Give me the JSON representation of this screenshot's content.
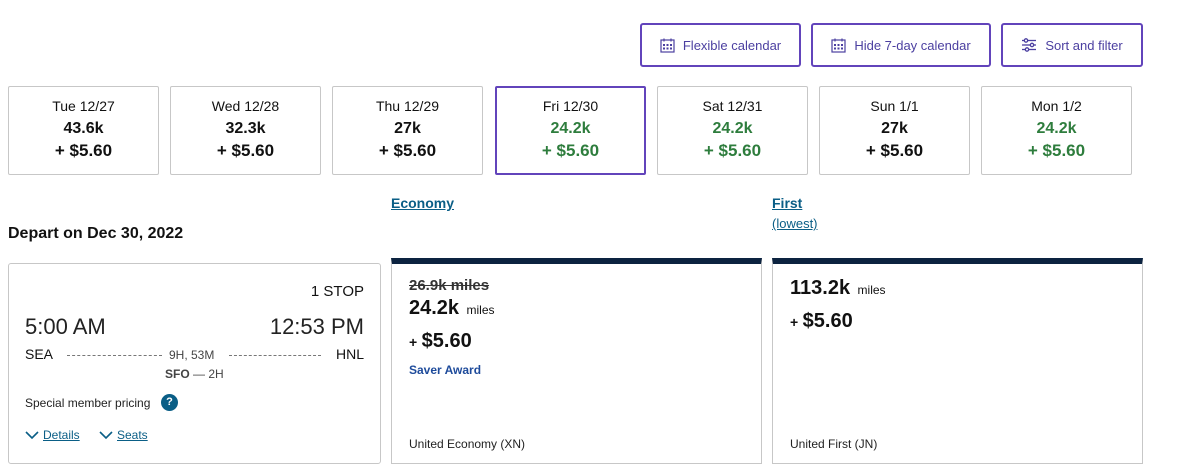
{
  "toolbar": {
    "flexible_calendar": "Flexible calendar",
    "hide_calendar": "Hide 7-day calendar",
    "sort_filter": "Sort and filter"
  },
  "calendar": [
    {
      "date": "Tue 12/27",
      "miles": "43.6k",
      "price": "+ $5.60",
      "low": false
    },
    {
      "date": "Wed 12/28",
      "miles": "32.3k",
      "price": "+ $5.60",
      "low": false
    },
    {
      "date": "Thu 12/29",
      "miles": "27k",
      "price": "+ $5.60",
      "low": false
    },
    {
      "date": "Fri 12/30",
      "miles": "24.2k",
      "price": "+ $5.60",
      "low": true,
      "selected": true
    },
    {
      "date": "Sat 12/31",
      "miles": "24.2k",
      "price": "+ $5.60",
      "low": true
    },
    {
      "date": "Sun 1/1",
      "miles": "27k",
      "price": "+ $5.60",
      "low": false
    },
    {
      "date": "Mon 1/2",
      "miles": "24.2k",
      "price": "+ $5.60",
      "low": true
    }
  ],
  "columns": {
    "economy": "Economy",
    "first": "First",
    "first_sub": "(lowest)"
  },
  "depart_title": "Depart on Dec 30, 2022",
  "flight": {
    "stops": "1 STOP",
    "depart_time": "5:00 AM",
    "arrive_time": "12:53 PM",
    "origin": "SEA",
    "destination": "HNL",
    "duration": "9H, 53M",
    "layover_airport": "SFO",
    "layover_time": "— 2H",
    "special_pricing": "Special member pricing",
    "help": "?",
    "details_link": "Details",
    "seats_link": "Seats"
  },
  "economy_fare": {
    "old_miles": "26.9k miles",
    "miles": "24.2k",
    "miles_unit": "miles",
    "plus": "+",
    "price": "$5.60",
    "award": "Saver Award",
    "fare_class": "United Economy (XN)"
  },
  "first_fare": {
    "miles": "113.2k",
    "miles_unit": "miles",
    "plus": "+",
    "price": "$5.60",
    "fare_class": "United First (JN)"
  },
  "colors": {
    "accent": "#6244bb",
    "green": "#2e7d3d",
    "link": "#0a5e86",
    "navy": "#0c2340"
  }
}
